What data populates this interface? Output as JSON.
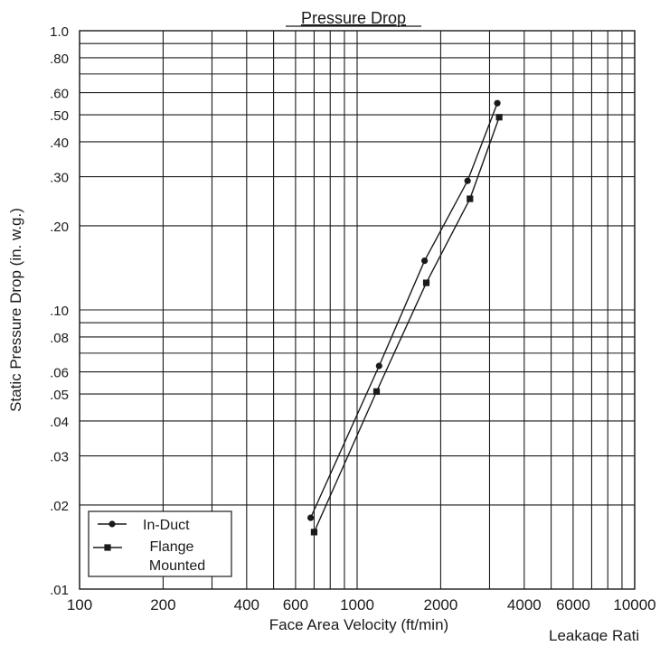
{
  "chart_data": {
    "type": "line",
    "title": "Pressure Drop",
    "xlabel": "Face Area Velocity (ft/min)",
    "ylabel": "Static Pressure Drop (in. w.g.)",
    "footer_text": "Leakage Rati",
    "x_scale": "log",
    "y_scale": "log",
    "xlim": [
      100,
      10000
    ],
    "ylim": [
      0.01,
      1.0
    ],
    "grid": true,
    "x_ticks": [
      {
        "value": 100,
        "label": "100"
      },
      {
        "value": 200,
        "label": "200"
      },
      {
        "value": 400,
        "label": "400"
      },
      {
        "value": 600,
        "label": "600"
      },
      {
        "value": 1000,
        "label": "1000"
      },
      {
        "value": 2000,
        "label": "2000"
      },
      {
        "value": 4000,
        "label": "4000"
      },
      {
        "value": 6000,
        "label": "6000"
      },
      {
        "value": 10000,
        "label": "10000"
      }
    ],
    "y_ticks": [
      {
        "value": 0.01,
        "label": ".01"
      },
      {
        "value": 0.02,
        "label": ".02"
      },
      {
        "value": 0.03,
        "label": ".03"
      },
      {
        "value": 0.04,
        "label": ".04"
      },
      {
        "value": 0.05,
        "label": ".05"
      },
      {
        "value": 0.06,
        "label": ".06"
      },
      {
        "value": 0.08,
        "label": ".08"
      },
      {
        "value": 0.1,
        "label": ".10"
      },
      {
        "value": 0.2,
        "label": ".20"
      },
      {
        "value": 0.3,
        "label": ".30"
      },
      {
        "value": 0.4,
        "label": ".40"
      },
      {
        "value": 0.5,
        "label": ".50"
      },
      {
        "value": 0.6,
        "label": ".60"
      },
      {
        "value": 0.8,
        "label": ".80"
      },
      {
        "value": 1.0,
        "label": "1.0"
      }
    ],
    "x_grid_values": [
      100,
      200,
      300,
      400,
      500,
      600,
      700,
      800,
      900,
      1000,
      2000,
      3000,
      4000,
      5000,
      6000,
      7000,
      8000,
      9000,
      10000
    ],
    "y_grid_values": [
      0.01,
      0.02,
      0.03,
      0.04,
      0.05,
      0.06,
      0.07,
      0.08,
      0.09,
      0.1,
      0.2,
      0.3,
      0.4,
      0.5,
      0.6,
      0.7,
      0.8,
      0.9,
      1.0
    ],
    "legend_position": "bottom-left",
    "series": [
      {
        "name": "In-Duct",
        "marker": "circle",
        "x": [
          680,
          1200,
          1750,
          2500,
          3200
        ],
        "y": [
          0.018,
          0.063,
          0.15,
          0.29,
          0.55
        ]
      },
      {
        "name": "Flange Mounted",
        "marker": "square",
        "x": [
          700,
          1175,
          1775,
          2550,
          3250
        ],
        "y": [
          0.016,
          0.051,
          0.125,
          0.25,
          0.49
        ]
      }
    ]
  }
}
